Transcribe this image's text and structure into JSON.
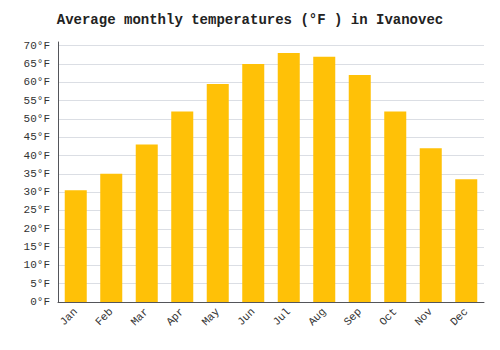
{
  "chart_data": {
    "type": "bar",
    "title": "Average monthly temperatures (°F ) in Ivanovec",
    "categories": [
      "Jan",
      "Feb",
      "Mar",
      "Apr",
      "May",
      "Jun",
      "Jul",
      "Aug",
      "Sep",
      "Oct",
      "Nov",
      "Dec"
    ],
    "values": [
      30.5,
      35.0,
      43.0,
      52.0,
      59.5,
      65.0,
      68.0,
      67.0,
      62.0,
      52.0,
      42.0,
      33.5
    ],
    "color": "#FFC107",
    "ylim": [
      0,
      71
    ],
    "yticks": [
      {
        "value": 0,
        "label": "0°F"
      },
      {
        "value": 5,
        "label": "5°F"
      },
      {
        "value": 10,
        "label": "10°F"
      },
      {
        "value": 15,
        "label": "15°F"
      },
      {
        "value": 20,
        "label": "20°F"
      },
      {
        "value": 25,
        "label": "25°F"
      },
      {
        "value": 30,
        "label": "30°F"
      },
      {
        "value": 35,
        "label": "35°F"
      },
      {
        "value": 40,
        "label": "40°F"
      },
      {
        "value": 45,
        "label": "45°F"
      },
      {
        "value": 50,
        "label": "50°F"
      },
      {
        "value": 55,
        "label": "55°F"
      },
      {
        "value": 60,
        "label": "60°F"
      },
      {
        "value": 65,
        "label": "65°F"
      },
      {
        "value": 70,
        "label": "70°F"
      }
    ],
    "grid": true
  }
}
